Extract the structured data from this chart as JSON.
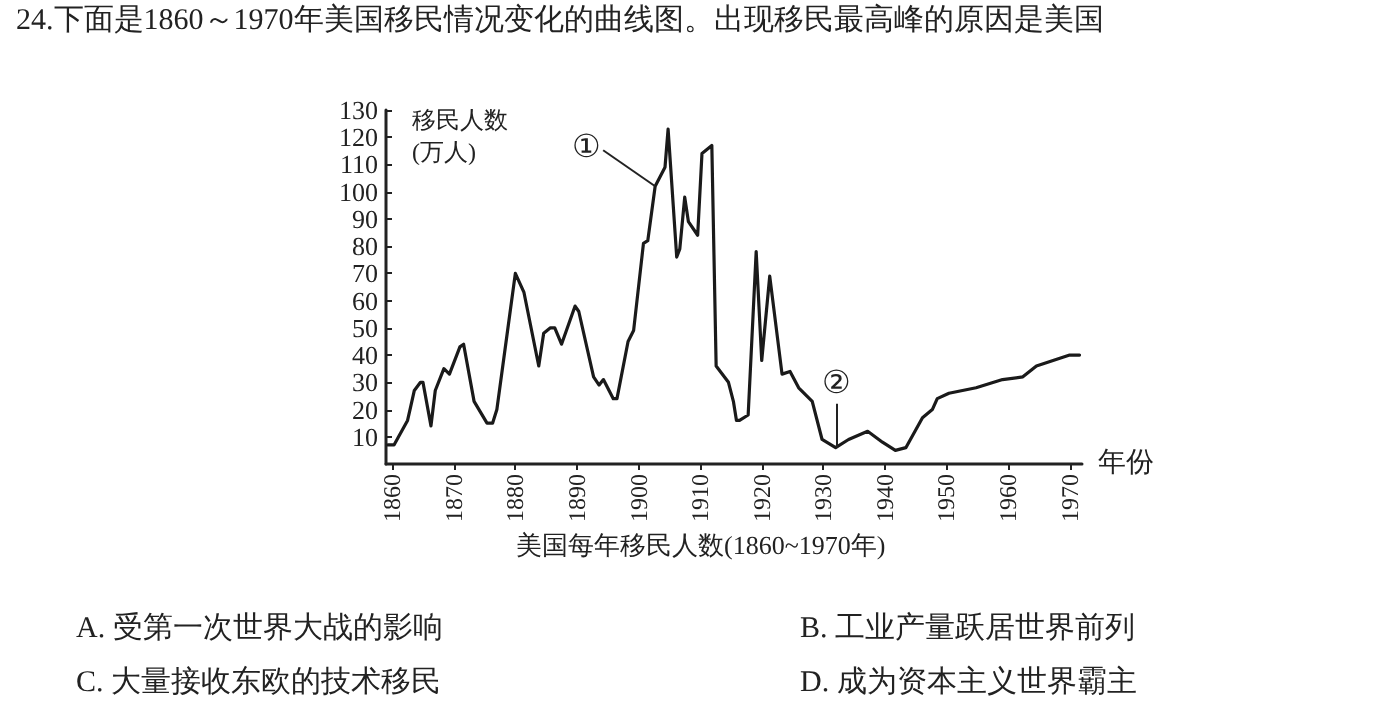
{
  "chart_data": {
    "type": "line",
    "title": "24.下面是1860～1970年美国移民情况变化的曲线图。出现移民最高峰的原因是美国",
    "ylabel": "移民人数\n(万人)",
    "xlabel": "年份",
    "annotations": [
      {
        "text": "①",
        "x": 1902.7,
        "y": 102
      },
      {
        "text": "②",
        "x": 1932,
        "y": 6
      },
      "美国每年移民人数(1860~1970年)",
      "A. 受第一次世界大战的影响",
      "B. 工业产量跃居世界前列",
      "C. 大量接收东欧的技术移民",
      "D. 成为资本主义世界霸主"
    ],
    "x": [
      1859.3,
      1860.3,
      1862.5,
      1863,
      1863.6,
      1864.6,
      1865,
      1866.3,
      1867,
      1868.4,
      1869.3,
      1871,
      1871.6,
      1873.3,
      1875.4,
      1876.3,
      1877,
      1880,
      1881.4,
      1883.8,
      1884.6,
      1885.7,
      1886.4,
      1887.5,
      1889.7,
      1890.3,
      1892.7,
      1893.6,
      1894.3,
      1895.9,
      1896.5,
      1898.3,
      1899.2,
      1900.8,
      1901.5,
      1902.7,
      1904.3,
      1904.8,
      1906.2,
      1906.7,
      1907.5,
      1908.1,
      1909.6,
      1910.3,
      1911.9,
      1912.6,
      1914.6,
      1915.4,
      1915.9,
      1916.4,
      1917.8,
      1919.1,
      1920,
      1921.3,
      1923.3,
      1924.6,
      1926,
      1928.2,
      1929.8,
      1932,
      1934.1,
      1937.2,
      1939.6,
      1941.7,
      1943.4,
      1946.1,
      1947.7,
      1948.5,
      1950.4,
      1954.8,
      1959.1,
      1962.4,
      1964.6,
      1967.3,
      1970,
      1971.6
    ],
    "series": [
      {
        "color": "#1a1a1a",
        "values": [
          7,
          7,
          16,
          21,
          27,
          30,
          30,
          14,
          27,
          35,
          33,
          43,
          44,
          23,
          15,
          15,
          20,
          70,
          63,
          36,
          48,
          50,
          50,
          44,
          58,
          56,
          32,
          29,
          31,
          24,
          24,
          45,
          49,
          81,
          82,
          102,
          109,
          123,
          76,
          79,
          98,
          89,
          84,
          114,
          117,
          36,
          30,
          23,
          16,
          16,
          18,
          78,
          38,
          69,
          33,
          34,
          28,
          23,
          9,
          6,
          9,
          12,
          8,
          5,
          6,
          17,
          20,
          24,
          26,
          28,
          31,
          32,
          36,
          38,
          40,
          40
        ]
      }
    ],
    "xlim": [
      1859,
      1972
    ],
    "ylim": [
      0,
      130
    ],
    "xticks": [
      1860,
      1870,
      1880,
      1890,
      1900,
      1910,
      1920,
      1930,
      1940,
      1950,
      1960,
      1970
    ],
    "yticks": [
      10,
      20,
      30,
      40,
      50,
      60,
      70,
      80,
      90,
      100,
      110,
      120,
      130
    ],
    "grid": false,
    "marker": "none",
    "line_style": "solid"
  }
}
